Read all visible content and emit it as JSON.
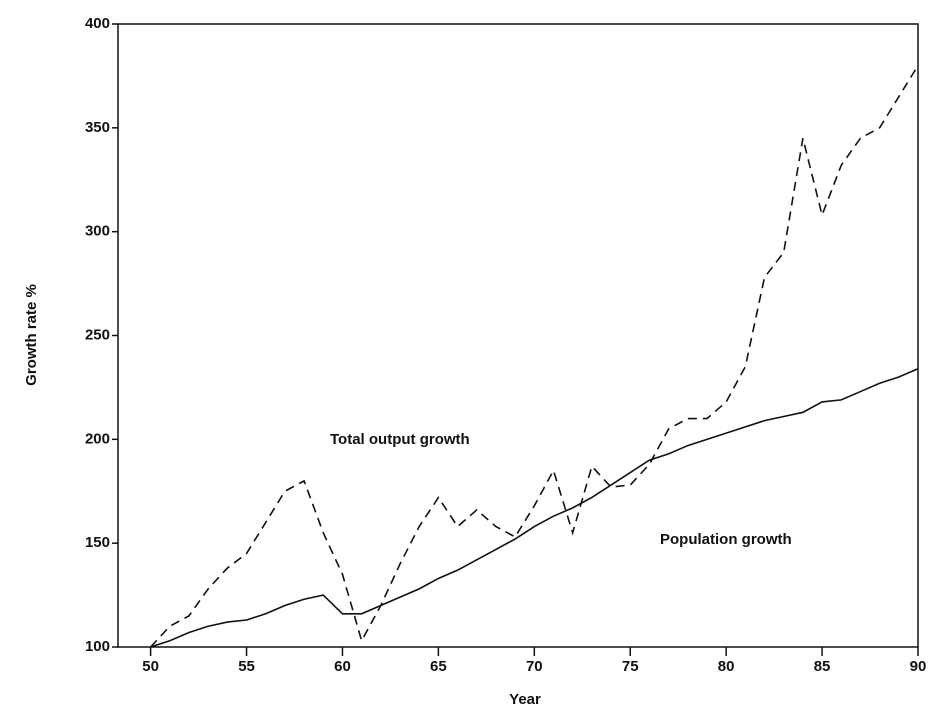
{
  "chart_data": {
    "type": "line",
    "x_label": "Year",
    "y_label": "Growth rate %",
    "x": [
      50,
      51,
      52,
      53,
      54,
      55,
      56,
      57,
      58,
      59,
      60,
      61,
      62,
      63,
      64,
      65,
      66,
      67,
      68,
      69,
      70,
      71,
      72,
      73,
      74,
      75,
      76,
      77,
      78,
      79,
      80,
      81,
      82,
      83,
      84,
      85,
      86,
      87,
      88,
      89,
      90
    ],
    "series": [
      {
        "name": "Total output growth",
        "color": "#111111",
        "dash": true,
        "values": [
          100,
          110,
          115,
          128,
          138,
          145,
          160,
          175,
          180,
          155,
          135,
          103,
          120,
          140,
          158,
          172,
          158,
          166,
          158,
          153,
          168,
          185,
          155,
          187,
          177,
          178,
          188,
          205,
          210,
          210,
          218,
          235,
          278,
          290,
          345,
          308,
          332,
          345,
          350,
          365,
          380
        ]
      },
      {
        "name": "Population growth",
        "color": "#111111",
        "dash": false,
        "values": [
          100,
          103,
          107,
          110,
          112,
          113,
          116,
          120,
          123,
          125,
          116,
          116,
          120,
          124,
          128,
          133,
          137,
          142,
          147,
          152,
          158,
          163,
          167,
          172,
          178,
          184,
          190,
          193,
          197,
          200,
          203,
          206,
          209,
          211,
          213,
          218,
          219,
          223,
          227,
          230,
          234
        ]
      }
    ],
    "xlim": [
      48.3,
      90
    ],
    "xticks": [
      50,
      55,
      60,
      65,
      70,
      75,
      80,
      85,
      90
    ],
    "ylim": [
      100,
      400
    ],
    "yticks": [
      100,
      150,
      200,
      250,
      300,
      350,
      400
    ]
  }
}
